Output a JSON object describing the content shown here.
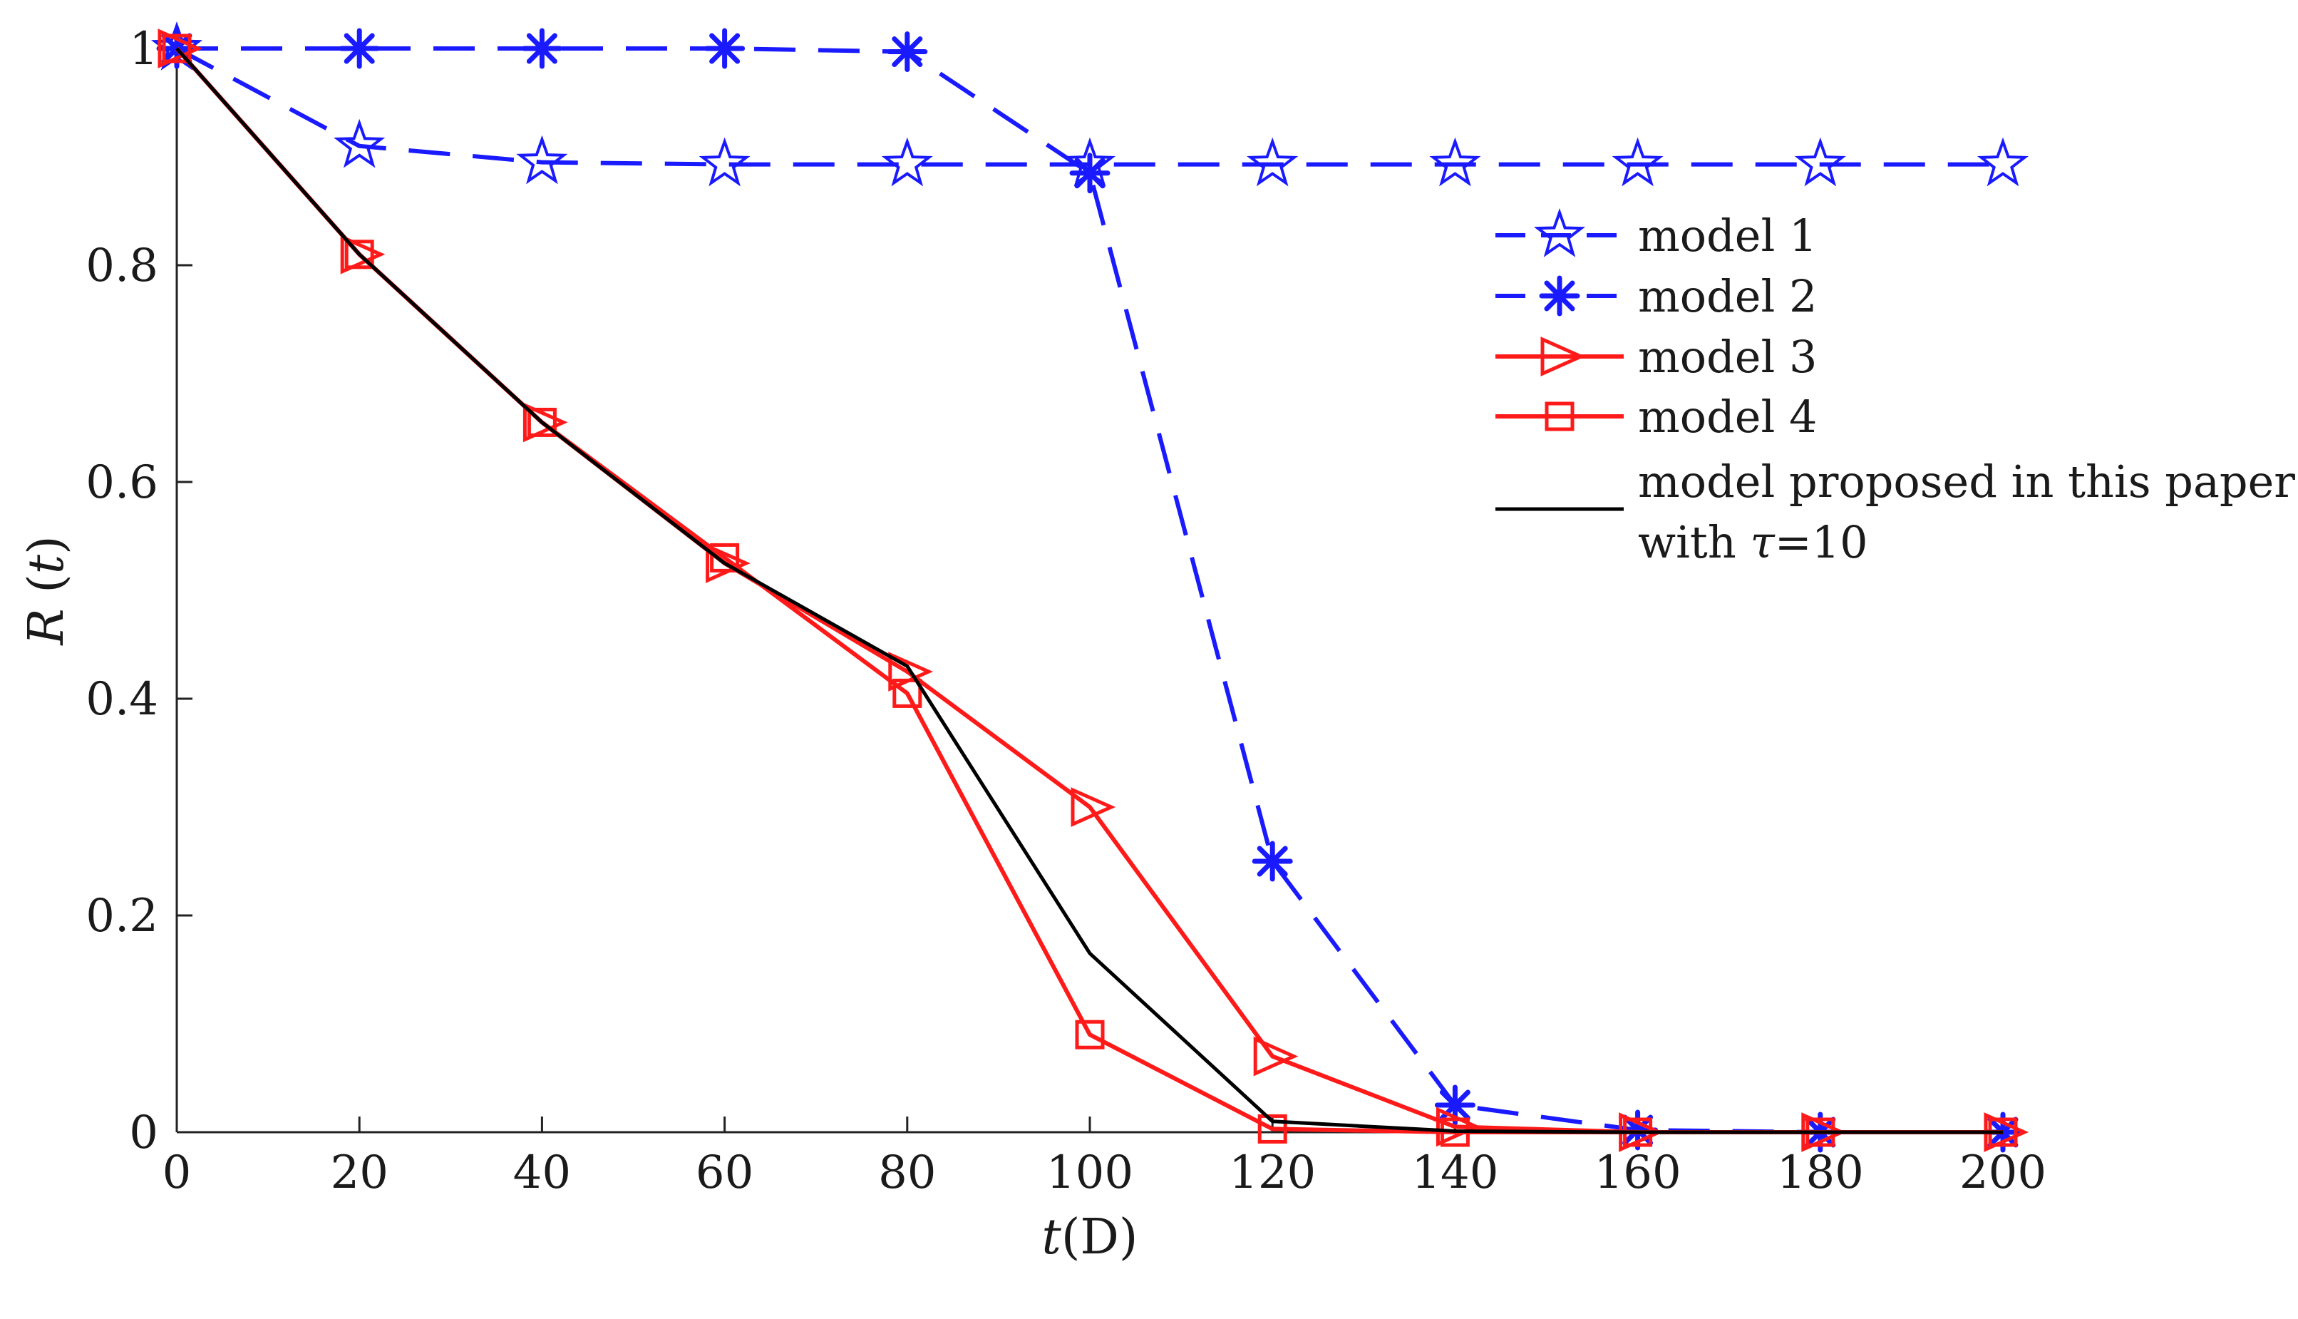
{
  "chart_data": {
    "type": "line",
    "title": "",
    "xlabel": {
      "var": "t",
      "unit": "(D)"
    },
    "ylabel": {
      "var": "R",
      "arg": "t"
    },
    "xlim": [
      0,
      200
    ],
    "ylim": [
      0,
      1
    ],
    "xticks": [
      0,
      20,
      40,
      60,
      80,
      100,
      120,
      140,
      160,
      180,
      200
    ],
    "yticks": [
      0,
      0.2,
      0.4,
      0.6,
      0.8,
      1
    ],
    "ytick_labels": [
      "0",
      "0.2",
      "0.4",
      "0.6",
      "0.8",
      "1"
    ],
    "grid": false,
    "legend_position": "right",
    "series": [
      {
        "name": "model 1",
        "color": "#1a1aff",
        "dashed": true,
        "marker": "star",
        "x": [
          0,
          20,
          40,
          60,
          80,
          100,
          120,
          140,
          160,
          180,
          200
        ],
        "y": [
          1.0,
          0.91,
          0.895,
          0.893,
          0.893,
          0.893,
          0.893,
          0.893,
          0.893,
          0.893,
          0.893
        ]
      },
      {
        "name": "model 2",
        "color": "#1a1aff",
        "dashed": true,
        "marker": "asterisk",
        "x": [
          0,
          20,
          40,
          60,
          80,
          100,
          120,
          140,
          160,
          180,
          200
        ],
        "y": [
          1.0,
          1.0,
          1.0,
          1.0,
          0.997,
          0.885,
          0.25,
          0.025,
          0.002,
          0.0,
          0.0
        ]
      },
      {
        "name": "model 3",
        "color": "#ff1a1a",
        "dashed": false,
        "marker": "triangle-right",
        "x": [
          0,
          20,
          40,
          60,
          80,
          100,
          120,
          140,
          160,
          180,
          200
        ],
        "y": [
          1.0,
          0.81,
          0.655,
          0.525,
          0.425,
          0.3,
          0.07,
          0.005,
          0.0,
          0.0,
          0.0
        ]
      },
      {
        "name": "model 4",
        "color": "#ff1a1a",
        "dashed": false,
        "marker": "square",
        "x": [
          0,
          20,
          40,
          60,
          80,
          100,
          120,
          140,
          160,
          180,
          200
        ],
        "y": [
          1.0,
          0.81,
          0.655,
          0.53,
          0.405,
          0.09,
          0.003,
          0.0,
          0.0,
          0.0,
          0.0
        ]
      },
      {
        "name": "model proposed in this paper",
        "name_line2": {
          "prefix": "with ",
          "symbol": "τ",
          "suffix": "=10"
        },
        "color": "#000000",
        "dashed": false,
        "marker": "none",
        "x": [
          0,
          20,
          40,
          60,
          80,
          100,
          120,
          140,
          160,
          180,
          200
        ],
        "y": [
          1.0,
          0.81,
          0.655,
          0.525,
          0.43,
          0.165,
          0.01,
          0.001,
          0.0,
          0.0,
          0.0
        ]
      }
    ]
  }
}
